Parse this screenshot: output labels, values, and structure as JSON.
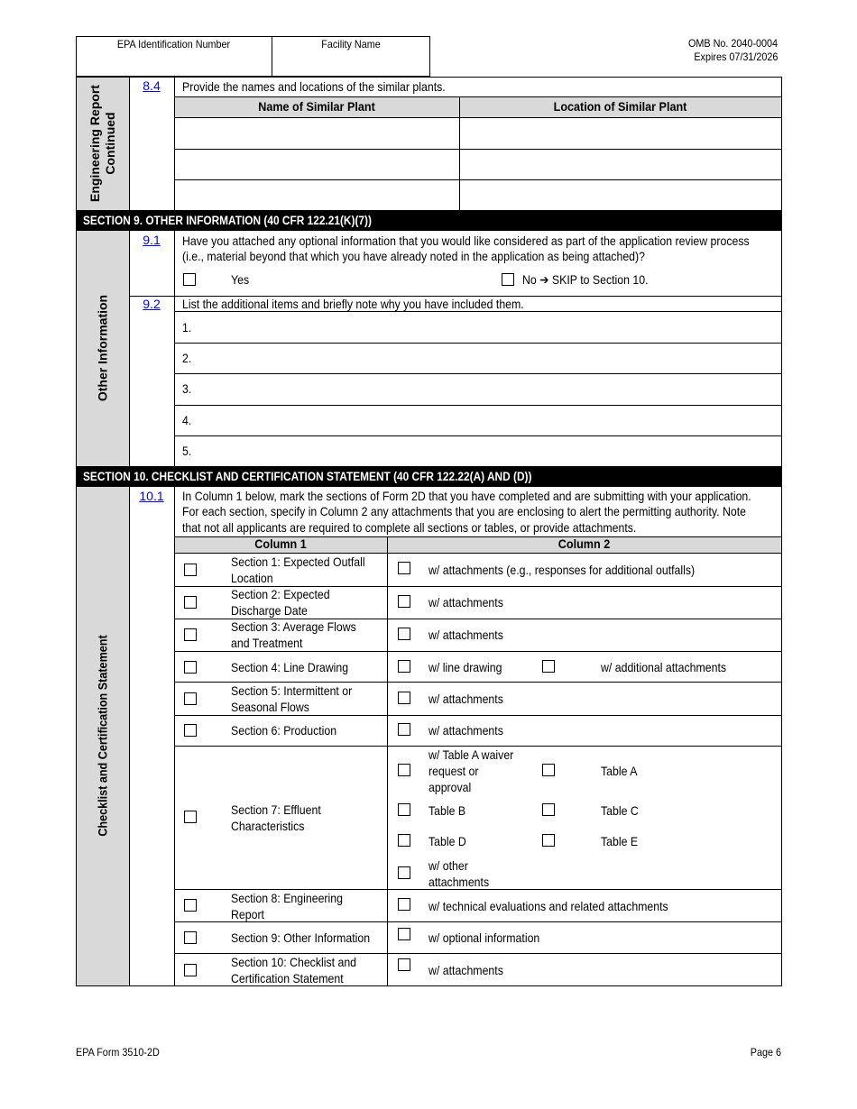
{
  "header": {
    "epa_id_label": "EPA Identification Number",
    "facility_label": "Facility Name",
    "omb": "OMB No. 2040-0004",
    "expires": "Expires 07/31/2026"
  },
  "engineering": {
    "side_label_1": "Engineering Report",
    "side_label_2": "Continued",
    "num": "8.4",
    "question": "Provide the names and locations of the similar plants.",
    "col_name": "Name of Similar Plant",
    "col_location": "Location of Similar Plant"
  },
  "section9": {
    "title": "SECTION 9. OTHER INFORMATION (40 CFR 122.21(K)(7))",
    "side_label": "Other Information",
    "q1": {
      "num": "9.1",
      "line1": "Have you attached any optional information that you would like considered as part of the application review process",
      "line2": "(i.e., material beyond that which you have already noted in the application as being attached)?",
      "yes": "Yes",
      "no": "No",
      "skip_arrow": "➔",
      "skip": "SKIP to Section 10."
    },
    "q2": {
      "num": "9.2",
      "text": "List the additional items and briefly note why you have included them.",
      "items": [
        "1.",
        "2.",
        "3.",
        "4.",
        "5."
      ]
    }
  },
  "section10": {
    "title": "SECTION 10. CHECKLIST AND CERTIFICATION STATEMENT (40 CFR 122.22(A) AND (D))",
    "side_label": "Checklist and Certification Statement",
    "num": "10.1",
    "intro": [
      "In Column 1 below, mark the sections of Form 2D that you have completed and are submitting with your application.",
      "For each section, specify in Column 2 any attachments that you are enclosing to alert the permitting authority. Note",
      "that not all applicants are required to complete all sections or tables, or provide attachments."
    ],
    "col1": "Column 1",
    "col2": "Column 2",
    "rows": [
      {
        "sec": [
          "Section 1: Expected Outfall",
          "Location"
        ],
        "att": "w/ attachments (e.g., responses for additional outfalls)"
      },
      {
        "sec": [
          "Section 2: Expected",
          "Discharge Date"
        ],
        "att": "w/ attachments"
      },
      {
        "sec": [
          "Section 3: Average Flows",
          "and Treatment"
        ],
        "att": "w/ attachments"
      },
      {
        "sec": [
          "Section 4: Line Drawing"
        ],
        "att": "w/ line drawing",
        "att2": "w/ additional attachments"
      },
      {
        "sec": [
          "Section 5: Intermittent or",
          "Seasonal Flows"
        ],
        "att": "w/ attachments"
      },
      {
        "sec": [
          "Section 6: Production"
        ],
        "att": "w/ attachments"
      },
      {
        "sec": [
          "Section 7: Effluent",
          "Characteristics"
        ],
        "waiver": [
          "w/ Table A waiver",
          "request or",
          "approval"
        ],
        "table_a": "Table A",
        "table_b": "Table B",
        "table_c": "Table C",
        "table_d": "Table D",
        "table_e": "Table E",
        "other": [
          "w/ other",
          "attachments"
        ]
      },
      {
        "sec": [
          "Section 8: Engineering",
          "Report"
        ],
        "att": "w/ technical evaluations and related attachments"
      },
      {
        "sec": [
          "Section 9: Other Information"
        ],
        "att": "w/ optional information"
      },
      {
        "sec": [
          "Section 10: Checklist and",
          "Certification Statement"
        ],
        "att": "w/ attachments"
      }
    ]
  },
  "footer": {
    "form": "EPA Form 3510-2D",
    "page": "Page 6"
  }
}
